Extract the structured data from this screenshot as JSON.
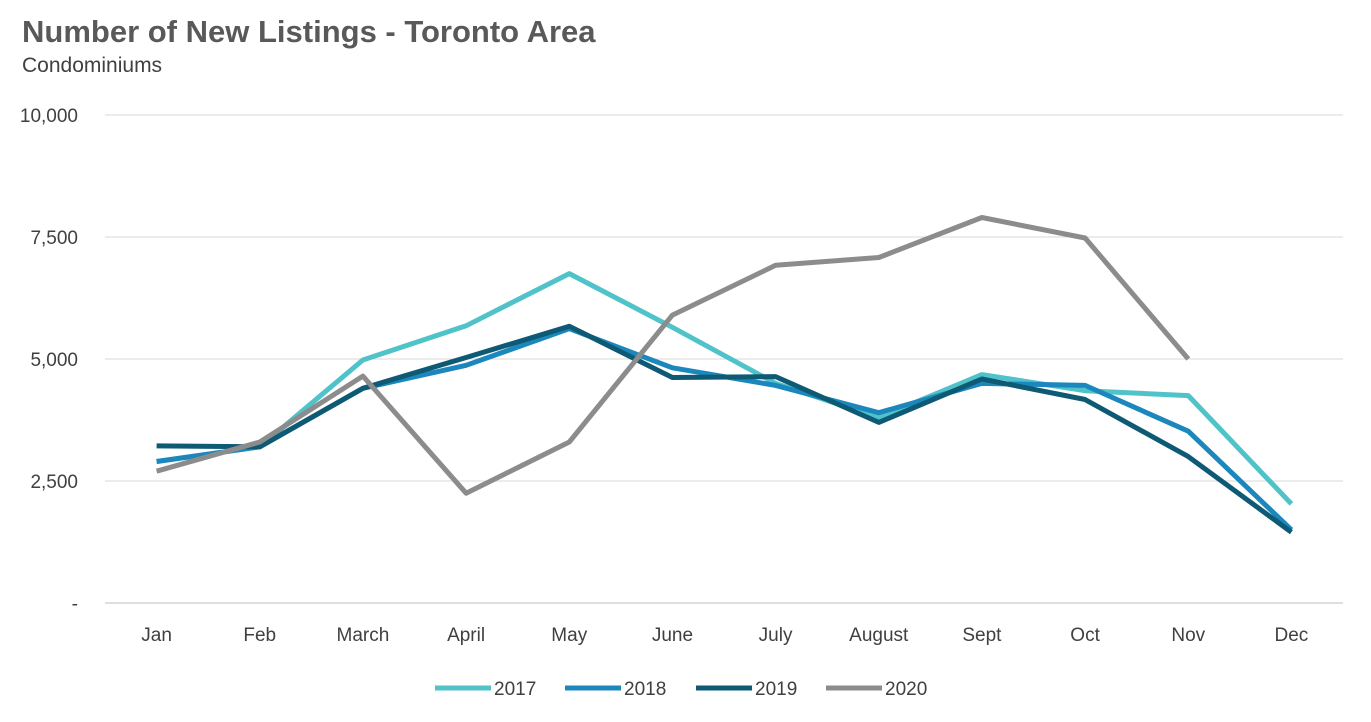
{
  "chart_data": {
    "type": "line",
    "title": "Number of New Listings - Toronto Area",
    "subtitle": "Condominiums",
    "categories": [
      "Jan",
      "Feb",
      "March",
      "April",
      "May",
      "June",
      "July",
      "August",
      "Sept",
      "Oct",
      "Nov",
      "Dec"
    ],
    "y_ticks": [
      {
        "value": 0,
        "label": "-"
      },
      {
        "value": 2500,
        "label": "2,500"
      },
      {
        "value": 5000,
        "label": "5,000"
      },
      {
        "value": 7500,
        "label": "7,500"
      },
      {
        "value": 10000,
        "label": "10,000"
      }
    ],
    "ylim": [
      0,
      10000
    ],
    "xlabel": "",
    "ylabel": "",
    "grid": true,
    "legend_position": "bottom",
    "series": [
      {
        "name": "2017",
        "color": "#4FC3C9",
        "values": [
          2900,
          3200,
          4980,
          5680,
          6750,
          5650,
          4500,
          3800,
          4680,
          4350,
          4250,
          2030
        ]
      },
      {
        "name": "2018",
        "color": "#1C87BC",
        "values": [
          2900,
          3200,
          4400,
          4870,
          5620,
          4820,
          4460,
          3900,
          4500,
          4460,
          3520,
          1500
        ]
      },
      {
        "name": "2019",
        "color": "#0E5A75",
        "values": [
          3220,
          3200,
          4400,
          5030,
          5670,
          4620,
          4640,
          3700,
          4590,
          4170,
          3000,
          1450
        ]
      },
      {
        "name": "2020",
        "color": "#8C8C8C",
        "values": [
          2700,
          3300,
          4650,
          2250,
          3300,
          5900,
          6920,
          7080,
          7900,
          7480,
          5000,
          null
        ]
      }
    ]
  }
}
